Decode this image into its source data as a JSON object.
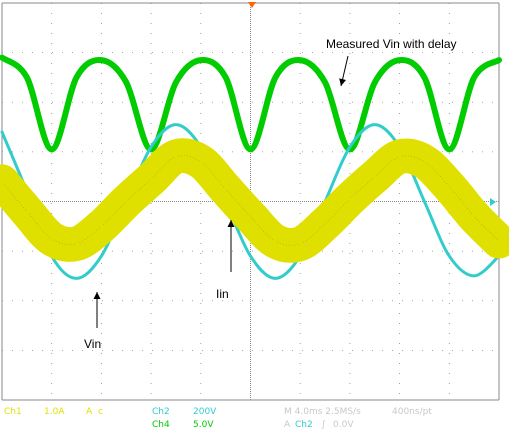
{
  "chart_data": {
    "type": "line",
    "title": "",
    "xlabel": "",
    "ylabel": "",
    "grid": true,
    "x_range": [
      0,
      40
    ],
    "y_range": [
      -4,
      4
    ],
    "x_unit": "ms",
    "y_unit": "div",
    "series": [
      {
        "name": "",
        "channel": "Ch1",
        "color": "#e0e000",
        "x": [
          0,
          2,
          4,
          6,
          8,
          10,
          12,
          14,
          16,
          18,
          20,
          22,
          24,
          26,
          28,
          30,
          32,
          34,
          36,
          38,
          40
        ],
        "y": [
          0.4,
          -0.2,
          -0.75,
          -0.85,
          -0.5,
          0.0,
          0.45,
          0.9,
          0.8,
          0.25,
          -0.3,
          -0.8,
          -0.85,
          -0.45,
          0.05,
          0.5,
          0.9,
          0.8,
          0.3,
          -0.3,
          -0.8
        ],
        "noise_band": 0.35
      },
      {
        "name": "",
        "channel": "Ch2",
        "color": "#33cccc",
        "x": [
          0,
          2,
          4,
          6,
          8,
          10,
          12,
          14,
          16,
          18,
          20,
          22,
          24,
          26,
          28,
          30,
          32,
          34,
          36,
          38,
          40
        ],
        "y": [
          1.4,
          0.2,
          -1.1,
          -1.55,
          -1.1,
          0.0,
          1.1,
          1.55,
          1.1,
          0.0,
          -1.1,
          -1.55,
          -1.1,
          0.0,
          1.1,
          1.55,
          1.1,
          0.0,
          -1.1,
          -1.5,
          -1.1
        ],
        "noise_band": 0.03
      },
      {
        "name": "",
        "channel": "Ch4",
        "color": "#00cc00",
        "x": [
          0,
          2,
          4,
          6,
          8,
          10,
          12,
          14,
          16,
          18,
          20,
          22,
          24,
          26,
          28,
          30,
          32,
          34,
          36,
          38,
          40
        ],
        "y": [
          2.9,
          2.5,
          1.05,
          2.5,
          2.85,
          2.4,
          1.05,
          2.4,
          2.85,
          2.5,
          1.05,
          2.5,
          2.85,
          2.4,
          1.05,
          2.4,
          2.85,
          2.5,
          1.05,
          2.5,
          2.85
        ],
        "noise_band": 0.06
      }
    ],
    "annotations": [
      {
        "text": "Measured Vin with delay",
        "x": 27.5,
        "y": 3.35
      },
      {
        "text": "Iin",
        "x": 17.8,
        "y": -1.85
      },
      {
        "text": "Vin",
        "x": 7.2,
        "y": -3.0
      }
    ]
  },
  "status_bar": {
    "ch1_label": "Ch1",
    "ch1_scale": "1.0A",
    "ch1_unit": "A",
    "ch1_coupling": "c",
    "ch2_label": "Ch2",
    "ch2_scale": "200V",
    "ch4_label": "Ch4",
    "ch4_scale": "5.0V",
    "timebase": "M 4.0ms 2.5MS/s",
    "resolution": "400ns/pt",
    "trigger_prefix": "A",
    "trigger_channel": "Ch2",
    "trigger_level": "0.0V"
  },
  "colors": {
    "ch1": "#e0e000",
    "ch2": "#33cccc",
    "ch4": "#00cc00",
    "grid": "#8a8a8a",
    "status_dim": "#c8c8c8"
  }
}
